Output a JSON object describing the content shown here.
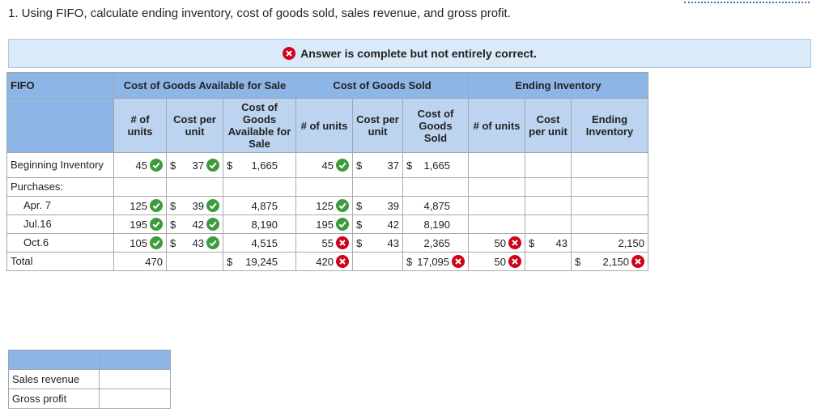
{
  "question": "1. Using FIFO, calculate ending inventory, cost of goods sold, sales revenue, and gross profit.",
  "banner": "Answer is complete but not entirely correct.",
  "table": {
    "corner": "FIFO",
    "groups": [
      "Cost of Goods Available for Sale",
      "Cost of Goods Sold",
      "Ending Inventory"
    ],
    "subheaders": [
      "# of units",
      "Cost per unit",
      "Cost of Goods Available for Sale",
      "# of units",
      "Cost per unit",
      "Cost of Goods Sold",
      "# of units",
      "Cost per unit",
      "Ending Inventory"
    ],
    "currency": "$",
    "rows": [
      {
        "label": "Beginning Inventory",
        "cells": [
          "45",
          "37",
          "1,665",
          "45",
          "37",
          "1,665",
          null,
          null,
          null
        ]
      },
      {
        "label": "Purchases:",
        "cells": [
          null,
          null,
          null,
          null,
          null,
          null,
          null,
          null,
          null
        ]
      },
      {
        "label": "Apr. 7",
        "cells": [
          "125",
          "39",
          "4,875",
          "125",
          "39",
          "4,875",
          null,
          null,
          null
        ]
      },
      {
        "label": "Jul.16",
        "cells": [
          "195",
          "42",
          "8,190",
          "195",
          "42",
          "8,190",
          null,
          null,
          null
        ]
      },
      {
        "label": "Oct.6",
        "cells": [
          "105",
          "43",
          "4,515",
          "55",
          "43",
          "2,365",
          "50",
          "43",
          "2,150"
        ]
      },
      {
        "label": "Total",
        "cells": [
          "470",
          null,
          "19,245",
          "420",
          null,
          "17,095",
          "50",
          null,
          "2,150"
        ]
      }
    ]
  },
  "summary": {
    "rows": [
      "Sales revenue",
      "Gross profit"
    ]
  }
}
